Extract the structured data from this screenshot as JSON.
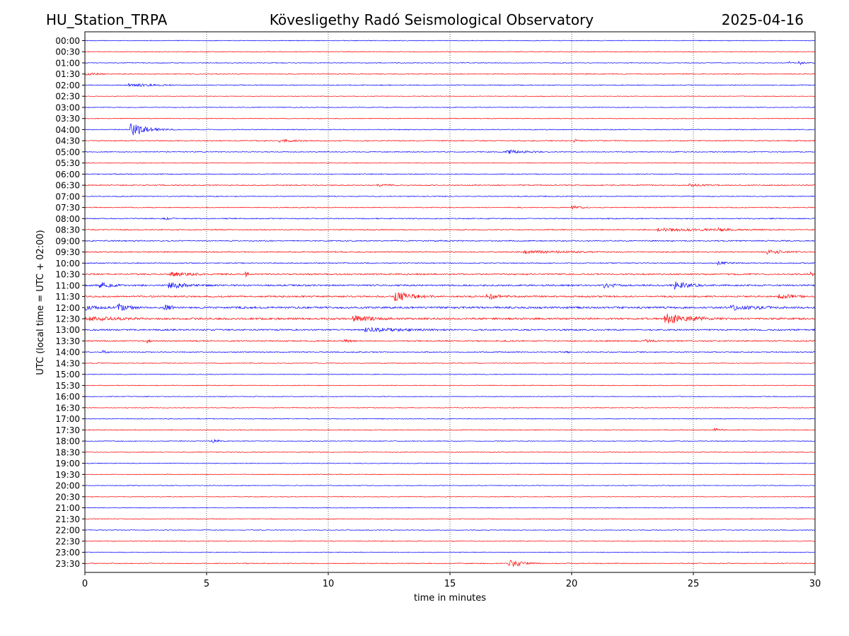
{
  "header": {
    "station": "HU_Station_TRPA",
    "observatory": "Kövesligethy Radó Seismological Observatory",
    "date": "2025-04-16"
  },
  "chart_data": {
    "type": "line",
    "title": "Kövesligethy Radó Seismological Observatory",
    "xlabel": "time in minutes",
    "ylabel": "UTC (local time = UTC + 02:00)",
    "xlim": [
      0,
      30
    ],
    "xticks": [
      0,
      5,
      10,
      15,
      20,
      25,
      30
    ],
    "grid": "vertical dotted lines at x ticks",
    "colors": {
      "even_rows": "#0000ff",
      "odd_rows": "#ff0000"
    },
    "series": [
      {
        "time": "00:00",
        "noise": 0.5,
        "events": []
      },
      {
        "time": "00:30",
        "noise": 0.5,
        "events": []
      },
      {
        "time": "01:00",
        "noise": 0.5,
        "events": [
          [
            28.9,
            29.3,
            4.5,
            8
          ],
          [
            29.3,
            30.0,
            3.5,
            2.5
          ]
        ]
      },
      {
        "time": "01:30",
        "noise": 0.6,
        "events": [
          [
            0.0,
            1.2,
            2.2,
            1.5
          ]
        ]
      },
      {
        "time": "02:00",
        "noise": 0.6,
        "events": [
          [
            1.8,
            4.6,
            2.8,
            2
          ]
        ]
      },
      {
        "time": "02:30",
        "noise": 0.4,
        "events": []
      },
      {
        "time": "03:00",
        "noise": 0.5,
        "events": []
      },
      {
        "time": "03:30",
        "noise": 0.5,
        "events": []
      },
      {
        "time": "04:00",
        "noise": 0.6,
        "events": [
          [
            1.85,
            4.0,
            10,
            3
          ]
        ]
      },
      {
        "time": "04:30",
        "noise": 0.7,
        "events": [
          [
            8.0,
            10.8,
            2.5,
            2.5
          ],
          [
            20.1,
            20.3,
            3.5,
            1
          ]
        ]
      },
      {
        "time": "05:00",
        "noise": 0.6,
        "events": [
          [
            17.3,
            19.5,
            3.5,
            2
          ]
        ]
      },
      {
        "time": "05:30",
        "noise": 0.5,
        "events": []
      },
      {
        "time": "06:00",
        "noise": 0.6,
        "events": []
      },
      {
        "time": "06:30",
        "noise": 0.7,
        "events": [
          [
            12.0,
            14.0,
            2,
            2
          ],
          [
            24.8,
            27.6,
            2.5,
            2.5
          ]
        ]
      },
      {
        "time": "07:00",
        "noise": 0.6,
        "events": []
      },
      {
        "time": "07:30",
        "noise": 0.6,
        "events": [
          [
            20.0,
            21.6,
            3,
            2.5
          ]
        ]
      },
      {
        "time": "08:00",
        "noise": 0.7,
        "events": [
          [
            3.2,
            4.2,
            2,
            1.5
          ]
        ]
      },
      {
        "time": "08:30",
        "noise": 0.7,
        "events": [
          [
            23.5,
            30.0,
            2.5,
            1.5
          ],
          [
            26.0,
            27.8,
            3.5,
            3
          ]
        ]
      },
      {
        "time": "09:00",
        "noise": 0.8,
        "events": [
          [
            14.0,
            16.0,
            1.6,
            1.5
          ]
        ]
      },
      {
        "time": "09:30",
        "noise": 0.8,
        "events": [
          [
            18.0,
            21.5,
            2.5,
            1
          ],
          [
            28.0,
            30.0,
            3.5,
            2
          ]
        ]
      },
      {
        "time": "10:00",
        "noise": 0.7,
        "events": [
          [
            26.0,
            28.0,
            2.5,
            2
          ]
        ]
      },
      {
        "time": "10:30",
        "noise": 1.0,
        "events": [
          [
            3.5,
            5.5,
            4,
            1.5
          ],
          [
            6.6,
            6.8,
            5,
            1
          ],
          [
            29.8,
            30.0,
            4,
            1
          ]
        ]
      },
      {
        "time": "11:00",
        "noise": 1.1,
        "events": [
          [
            0.6,
            2.0,
            5,
            2
          ],
          [
            3.4,
            5.4,
            5.5,
            2
          ],
          [
            24.2,
            26.0,
            6,
            2
          ],
          [
            21.3,
            22.5,
            4,
            1.5
          ]
        ]
      },
      {
        "time": "11:30",
        "noise": 1.1,
        "events": [
          [
            12.7,
            15.0,
            8,
            2.5
          ],
          [
            16.5,
            18.0,
            5,
            2
          ],
          [
            28.5,
            30.0,
            4,
            1.5
          ]
        ]
      },
      {
        "time": "12:00",
        "noise": 1.3,
        "events": [
          [
            0.0,
            1.0,
            4.5,
            1
          ],
          [
            1.3,
            2.6,
            7,
            2
          ],
          [
            3.2,
            3.8,
            5,
            1
          ],
          [
            26.5,
            30.0,
            4,
            1.5
          ]
        ]
      },
      {
        "time": "12:30",
        "noise": 1.3,
        "events": [
          [
            0.0,
            4.5,
            3.5,
            1.5
          ],
          [
            11.0,
            13.5,
            5,
            2
          ],
          [
            23.8,
            27.5,
            8,
            2.5
          ]
        ]
      },
      {
        "time": "13:00",
        "noise": 1.0,
        "events": [
          [
            11.5,
            16.0,
            3.5,
            1.5
          ]
        ]
      },
      {
        "time": "13:30",
        "noise": 0.9,
        "events": [
          [
            2.5,
            2.8,
            3.5,
            1
          ],
          [
            10.6,
            11.2,
            3,
            1
          ],
          [
            23.0,
            24.0,
            2.5,
            1.5
          ]
        ]
      },
      {
        "time": "14:00",
        "noise": 0.7,
        "events": [
          [
            0.7,
            1.1,
            3,
            1.5
          ],
          [
            19.8,
            20.1,
            2,
            1
          ]
        ]
      },
      {
        "time": "14:30",
        "noise": 0.5,
        "events": []
      },
      {
        "time": "15:00",
        "noise": 0.5,
        "events": []
      },
      {
        "time": "15:30",
        "noise": 0.5,
        "events": []
      },
      {
        "time": "16:00",
        "noise": 0.5,
        "events": []
      },
      {
        "time": "16:30",
        "noise": 0.5,
        "events": []
      },
      {
        "time": "17:00",
        "noise": 0.5,
        "events": []
      },
      {
        "time": "17:30",
        "noise": 0.6,
        "events": [
          [
            25.8,
            26.5,
            3,
            2
          ]
        ]
      },
      {
        "time": "18:00",
        "noise": 0.5,
        "events": [
          [
            5.2,
            5.8,
            3.5,
            1.5
          ]
        ]
      },
      {
        "time": "18:30",
        "noise": 0.5,
        "events": []
      },
      {
        "time": "19:00",
        "noise": 0.5,
        "events": []
      },
      {
        "time": "19:30",
        "noise": 0.5,
        "events": []
      },
      {
        "time": "20:00",
        "noise": 0.5,
        "events": []
      },
      {
        "time": "20:30",
        "noise": 0.5,
        "events": []
      },
      {
        "time": "21:00",
        "noise": 0.5,
        "events": []
      },
      {
        "time": "21:30",
        "noise": 0.5,
        "events": []
      },
      {
        "time": "22:00",
        "noise": 0.5,
        "events": []
      },
      {
        "time": "22:30",
        "noise": 0.5,
        "events": []
      },
      {
        "time": "23:00",
        "noise": 0.5,
        "events": []
      },
      {
        "time": "23:30",
        "noise": 0.6,
        "events": [
          [
            17.4,
            19.0,
            7,
            2.5
          ]
        ]
      }
    ]
  }
}
